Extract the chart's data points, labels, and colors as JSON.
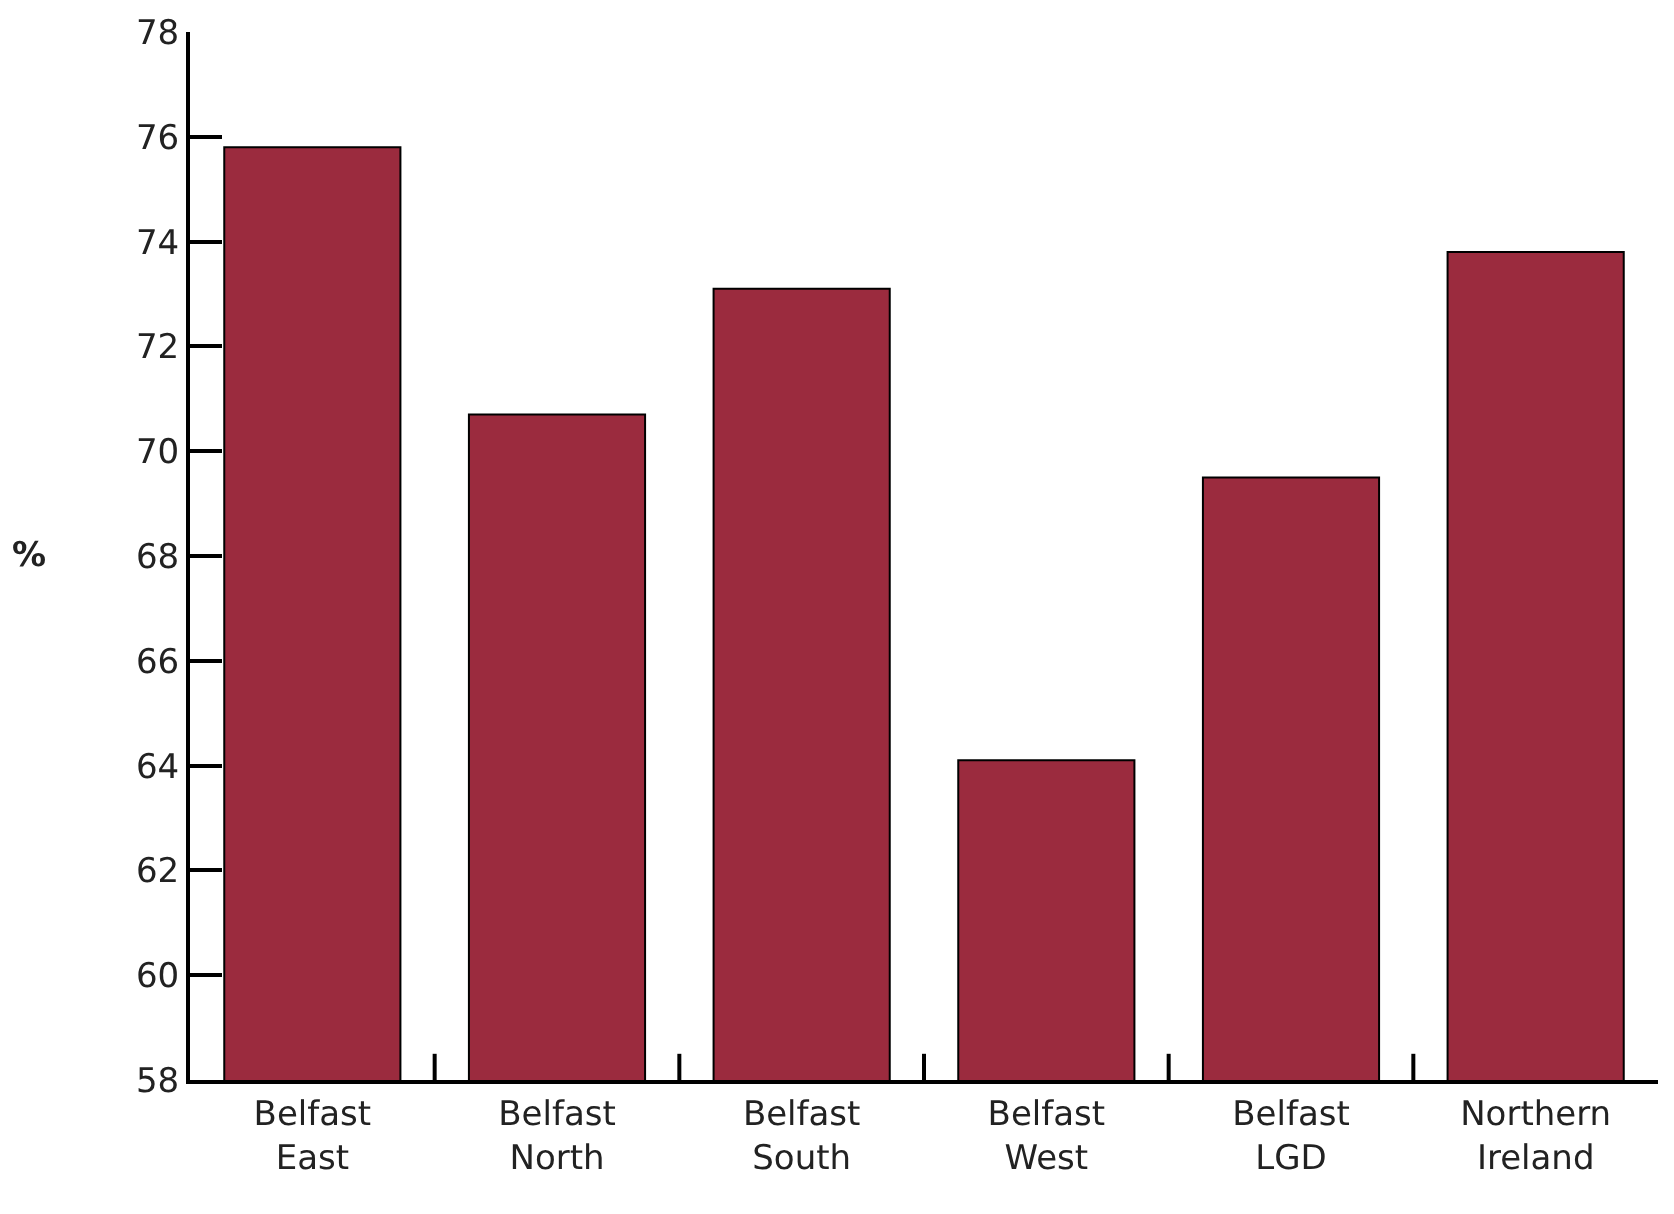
{
  "chart_data": {
    "type": "bar",
    "ylabel": "%",
    "categories": [
      "Belfast East",
      "Belfast North",
      "Belfast South",
      "Belfast West",
      "Belfast LGD",
      "Northern Ireland"
    ],
    "values": [
      75.8,
      70.7,
      73.1,
      64.1,
      69.5,
      73.8
    ],
    "color": "#9b2b3e",
    "ylim": [
      58,
      78
    ],
    "yticks": [
      58,
      60,
      62,
      64,
      66,
      68,
      70,
      72,
      74,
      76,
      78
    ],
    "grid": false,
    "legend": false
  }
}
